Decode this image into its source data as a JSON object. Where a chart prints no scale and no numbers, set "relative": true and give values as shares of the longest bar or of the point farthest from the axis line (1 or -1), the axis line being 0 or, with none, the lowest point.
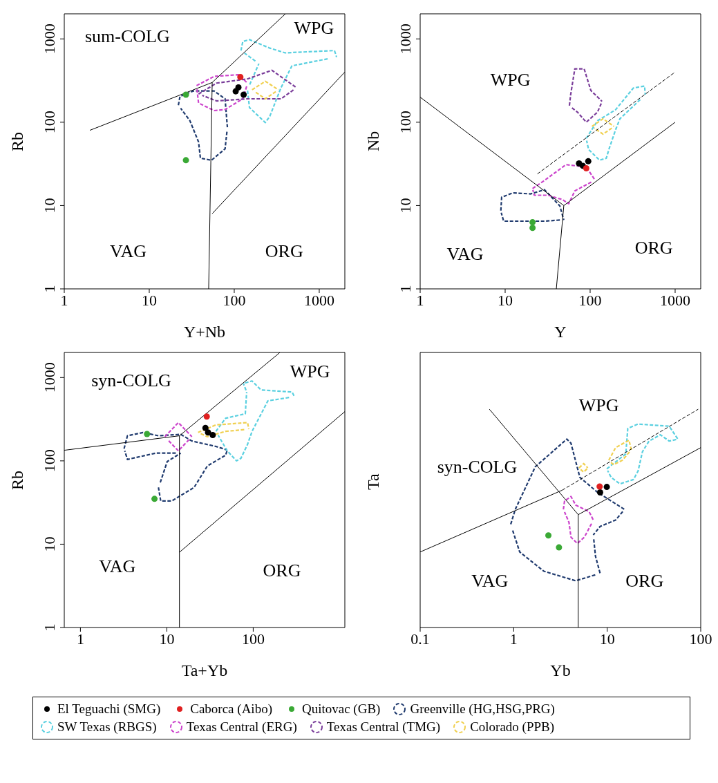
{
  "chart_data": [
    {
      "type": "scatter",
      "xlabel": "Y+Nb",
      "ylabel": "Rb",
      "log": "xy",
      "legend": "bottom",
      "xlim": [
        1,
        2000
      ],
      "ylim": [
        1,
        2000
      ],
      "xticks": [
        1,
        10,
        100,
        1000
      ],
      "yticks": [
        1,
        10,
        100,
        1000
      ],
      "annotations": [
        "sum-COLG",
        "WPG",
        "VAG",
        "ORG"
      ],
      "series": [
        {
          "name": "El Teguachi (SMG)",
          "type": "scatter",
          "marker": "circle",
          "color": "#000000",
          "x": [
            112,
            104,
            129
          ],
          "values": [
            262,
            235,
            214
          ]
        },
        {
          "name": "Caborca (Aibo)",
          "type": "scatter",
          "marker": "circle",
          "color": "#e02020",
          "x": [
            118
          ],
          "values": [
            348
          ]
        },
        {
          "name": "Quitovac (GB)",
          "type": "scatter",
          "marker": "circle",
          "color": "#3aa935",
          "x": [
            27,
            27
          ],
          "values": [
            214,
            35
          ]
        },
        {
          "name": "Greenville (HG,HSG,PRG)",
          "type": "line",
          "line_style": "dashed",
          "color": "#1f3a6e",
          "x": [
            22,
            23,
            33,
            58,
            78,
            83
          ],
          "values": [
            160,
            204,
            237,
            237,
            191,
            87
          ]
        },
        {
          "type": "line",
          "line_style": "dashed",
          "color": "#1f3a6e",
          "x": [
            82,
            78,
            54,
            40,
            38,
            30,
            23.4
          ],
          "values": [
            77,
            48,
            35,
            37,
            58,
            105,
            147
          ]
        },
        {
          "name": "SW Texas (RBGS)",
          "type": "line",
          "line_style": "dashed",
          "color": "#5ad0e0",
          "x": [
            120,
            126,
            151,
            262,
            398,
            1510,
            1600
          ],
          "values": [
            725,
            930,
            980,
            775,
            680,
            725,
            605
          ]
        },
        {
          "type": "line",
          "line_style": "dashed",
          "color": "#5ad0e0",
          "x": [
            1256,
            477,
            355,
            262,
            232,
            151,
            143
          ],
          "values": [
            577,
            475,
            260,
            118,
            99,
            150,
            245
          ]
        },
        {
          "type": "line",
          "line_style": "dashed",
          "color": "#5ad0e0",
          "x": [
            152,
            195
          ],
          "values": [
            283,
            505
          ]
        },
        {
          "type": "line",
          "line_style": "dashed",
          "color": "#5ad0e0",
          "x": [
            177,
            132
          ],
          "values": [
            543,
            675
          ]
        },
        {
          "name": "Texas Central (ERG)",
          "type": "line",
          "line_style": "dashed",
          "color": "#cc44cc",
          "x": [
            36,
            58,
            112,
            143
          ],
          "values": [
            275,
            355,
            372,
            295
          ]
        },
        {
          "type": "line",
          "line_style": "dashed",
          "color": "#cc44cc",
          "x": [
            140,
            126,
            78,
            58,
            38,
            36.4
          ],
          "values": [
            270,
            191,
            142,
            138,
            170,
            250
          ]
        },
        {
          "name": "Texas Central (TMG)",
          "type": "line",
          "line_style": "dashed",
          "color": "#7a3d9a",
          "x": [
            38,
            62,
            143,
            277,
            540
          ],
          "values": [
            218,
            295,
            331,
            420,
            260
          ]
        },
        {
          "type": "line",
          "line_style": "dashed",
          "color": "#7a3d9a",
          "x": [
            497,
            355,
            143,
            62,
            42
          ],
          "values": [
            244,
            191,
            191,
            180,
            210
          ]
        },
        {
          "name": "Colorado (PPB)",
          "type": "line",
          "line_style": "dashed",
          "color": "#f0d050",
          "x": [
            162,
            232,
            331
          ],
          "values": [
            245,
            310,
            245
          ]
        },
        {
          "type": "line",
          "line_style": "dashed",
          "color": "#f0d050",
          "x": [
            308,
            232,
            174
          ],
          "values": [
            233,
            191,
            233
          ]
        },
        {
          "type": "line",
          "line_style": "solid",
          "color": "#000000",
          "x": [
            2,
            55,
            400
          ],
          "values": [
            80,
            300,
            2000
          ]
        },
        {
          "type": "line",
          "line_style": "solid",
          "color": "#000000",
          "x": [
            55,
            50
          ],
          "values": [
            300,
            1
          ]
        },
        {
          "type": "line",
          "line_style": "solid",
          "color": "#000000",
          "x": [
            55,
            2000
          ],
          "values": [
            8,
            400
          ]
        }
      ]
    },
    {
      "type": "scatter",
      "xlabel": "Y",
      "ylabel": "Nb",
      "log": "xy",
      "xlim": [
        1,
        2000
      ],
      "ylim": [
        1,
        2000
      ],
      "xticks": [
        1,
        10,
        100,
        1000
      ],
      "yticks": [
        1,
        10,
        100,
        1000
      ],
      "annotations": [
        "WPG",
        "VAG",
        "ORG"
      ],
      "series": [
        {
          "type": "scatter",
          "marker": "circle",
          "color": "#000000",
          "x": [
            74,
            95,
            82
          ],
          "values": [
            32,
            34,
            30
          ]
        },
        {
          "type": "scatter",
          "marker": "circle",
          "color": "#e02020",
          "x": [
            90
          ],
          "values": [
            28
          ]
        },
        {
          "type": "scatter",
          "marker": "circle",
          "color": "#3aa935",
          "x": [
            21,
            21
          ],
          "values": [
            6.3,
            5.4
          ]
        },
        {
          "type": "line",
          "line_style": "dashed",
          "color": "#1f3a6e",
          "x": [
            8.9,
            9.1,
            12.3,
            20,
            29,
            44,
            49
          ],
          "values": [
            8.7,
            12.6,
            14.2,
            13.8,
            15.5,
            9.9,
            6.7
          ]
        },
        {
          "type": "line",
          "line_style": "dashed",
          "color": "#1f3a6e",
          "x": [
            44,
            29,
            9.6,
            9
          ],
          "values": [
            6.7,
            6.5,
            6.5,
            8.2
          ]
        },
        {
          "type": "line",
          "line_style": "dashed",
          "color": "#5ad0e0",
          "x": [
            90,
            122,
            199,
            322,
            437,
            445
          ],
          "values": [
            64,
            104,
            141,
            257,
            272,
            214
          ]
        },
        {
          "type": "line",
          "line_style": "dashed",
          "color": "#5ad0e0",
          "x": [
            388,
            224,
            199,
            166,
            155,
            129,
            96,
            91
          ],
          "values": [
            187,
            110,
            81,
            47,
            37,
            35,
            47,
            60
          ]
        },
        {
          "type": "line",
          "line_style": "dashed",
          "color": "#cc44cc",
          "x": [
            21,
            29,
            52,
            90,
            115
          ],
          "values": [
            16,
            20,
            31,
            29,
            20
          ]
        },
        {
          "type": "line",
          "line_style": "dashed",
          "color": "#cc44cc",
          "x": [
            103,
            66,
            56,
            47,
            32,
            22,
            21.2
          ],
          "values": [
            19.1,
            15,
            10.5,
            11.8,
            13.3,
            13.3,
            15.4
          ]
        },
        {
          "type": "line",
          "line_style": "dashed",
          "color": "#7a3d9a",
          "x": [
            57,
            59,
            66,
            85,
            102,
            138
          ],
          "values": [
            158,
            214,
            437,
            437,
            240,
            178
          ]
        },
        {
          "type": "line",
          "line_style": "dashed",
          "color": "#7a3d9a",
          "x": [
            135,
            122,
            90,
            71,
            59.6
          ],
          "values": [
            168,
            132,
            100,
            132,
            152
          ]
        },
        {
          "type": "line",
          "line_style": "dashed",
          "color": "#f0d050",
          "x": [
            105,
            142,
            191
          ],
          "values": [
            89,
            110,
            89
          ]
        },
        {
          "type": "line",
          "line_style": "dashed",
          "color": "#f0d050",
          "x": [
            180,
            142,
            111.5
          ],
          "values": [
            85,
            72,
            85
          ]
        },
        {
          "type": "line",
          "line_style": "solid",
          "color": "#000000",
          "x": [
            1,
            49
          ],
          "values": [
            200,
            10
          ]
        },
        {
          "type": "line",
          "line_style": "solid",
          "color": "#000000",
          "x": [
            49,
            40
          ],
          "values": [
            10,
            1
          ]
        },
        {
          "type": "line",
          "line_style": "solid",
          "color": "#000000",
          "x": [
            49,
            1000
          ],
          "values": [
            10,
            100
          ]
        },
        {
          "type": "line",
          "line_style": "dashed",
          "color": "#000000",
          "x": [
            24,
            1000
          ],
          "values": [
            24,
            400
          ]
        }
      ]
    },
    {
      "type": "scatter",
      "xlabel": "Ta+Yb",
      "ylabel": "Rb",
      "log": "xy",
      "xlim": [
        0.65,
        1150
      ],
      "ylim": [
        1,
        2000
      ],
      "xticks": [
        1,
        10,
        100
      ],
      "yticks": [
        1,
        10,
        100,
        1000
      ],
      "annotations": [
        "syn-COLG",
        "WPG",
        "VAG",
        "ORG"
      ],
      "series": [
        {
          "type": "scatter",
          "marker": "circle",
          "color": "#000000",
          "x": [
            28,
            30,
            34
          ],
          "values": [
            248,
            219,
            204
          ]
        },
        {
          "type": "scatter",
          "marker": "circle",
          "color": "#e02020",
          "x": [
            29
          ],
          "values": [
            340
          ]
        },
        {
          "type": "scatter",
          "marker": "circle",
          "color": "#3aa935",
          "x": [
            5.9,
            7.2
          ],
          "values": [
            210,
            35
          ]
        },
        {
          "type": "line",
          "line_style": "dashed",
          "color": "#1f3a6e",
          "x": [
            3.2,
            3.5,
            5.3,
            8,
            14.5,
            19.5,
            37,
            50
          ],
          "values": [
            140,
            200,
            219,
            200,
            208,
            173,
            149,
            135
          ]
        },
        {
          "type": "line",
          "line_style": "dashed",
          "color": "#1f3a6e",
          "x": [
            49.6,
            48,
            29.5,
            20.7,
            11.4,
            8.5,
            8
          ],
          "values": [
            131,
            117,
            87,
            48,
            33,
            33,
            48
          ]
        },
        {
          "type": "line",
          "line_style": "dashed",
          "color": "#1f3a6e",
          "x": [
            8.4,
            10.1,
            14.5
          ],
          "values": [
            55,
            98,
            124
          ]
        },
        {
          "type": "line",
          "line_style": "dashed",
          "color": "#1f3a6e",
          "x": [
            12.7,
            7.5,
            3.5,
            3.26
          ],
          "values": [
            124,
            124,
            104,
            132
          ]
        },
        {
          "type": "line",
          "line_style": "dashed",
          "color": "#5ad0e0",
          "x": [
            37,
            48,
            81,
            84
          ],
          "values": [
            226,
            325,
            367,
            670
          ]
        },
        {
          "type": "line",
          "line_style": "dashed",
          "color": "#5ad0e0",
          "x": [
            82.6,
            77
          ],
          "values": [
            703,
            850
          ]
        },
        {
          "type": "line",
          "line_style": "dashed",
          "color": "#5ad0e0",
          "x": [
            80.6,
            97,
            123,
            282,
            300
          ],
          "values": [
            861,
            910,
            710,
            670,
            590
          ]
        },
        {
          "type": "line",
          "line_style": "dashed",
          "color": "#5ad0e0",
          "x": [
            260,
            148,
            97,
            86,
            72,
            64,
            50,
            39.3
          ],
          "values": [
            576,
            525,
            226,
            158,
            107,
            100,
            132,
            203
          ]
        },
        {
          "type": "line",
          "line_style": "dashed",
          "color": "#cc44cc",
          "x": [
            9.5,
            13.6,
            19.5
          ],
          "values": [
            195,
            288,
            195
          ]
        },
        {
          "type": "line",
          "line_style": "dashed",
          "color": "#cc44cc",
          "x": [
            18.1,
            13.6,
            10.2
          ],
          "values": [
            180,
            132,
            180
          ]
        },
        {
          "type": "line",
          "line_style": "dashed",
          "color": "#f0d050",
          "x": [
            23,
            37,
            86,
            89
          ],
          "values": [
            219,
            270,
            288,
            240
          ]
        },
        {
          "type": "line",
          "line_style": "dashed",
          "color": "#f0d050",
          "x": [
            78.7,
            48,
            29.5,
            24.2
          ],
          "values": [
            237,
            226,
            195,
            214
          ]
        },
        {
          "type": "line",
          "line_style": "solid",
          "color": "#000000",
          "x": [
            0.65,
            14,
            204
          ],
          "values": [
            134,
            200,
            2000
          ]
        },
        {
          "type": "line",
          "line_style": "solid",
          "color": "#000000",
          "x": [
            14,
            14
          ],
          "values": [
            200,
            1
          ]
        },
        {
          "type": "line",
          "line_style": "solid",
          "color": "#000000",
          "x": [
            14,
            1150
          ],
          "values": [
            8,
            390
          ]
        }
      ]
    },
    {
      "type": "scatter",
      "xlabel": "Yb",
      "ylabel": "Ta",
      "log": "x",
      "relative": true,
      "tick_labels": "x",
      "xlim": [
        0.1,
        100
      ],
      "xticks": [
        0.1,
        1,
        10,
        100
      ],
      "annotations": [
        "WPG",
        "syn-COLG",
        "VAG",
        "ORG"
      ],
      "series": [
        {
          "type": "scatter",
          "marker": "circle",
          "color": "#000000",
          "x": [
            9.9,
            8.4
          ],
          "values": [
            0.644,
            0.619
          ]
        },
        {
          "type": "scatter",
          "marker": "circle",
          "color": "#e02020",
          "x": [
            8.3
          ],
          "values": [
            0.646
          ]
        },
        {
          "type": "scatter",
          "marker": "circle",
          "color": "#3aa935",
          "x": [
            2.35,
            3.05
          ],
          "values": [
            0.422,
            0.367
          ]
        },
        {
          "type": "line",
          "line_style": "dashed",
          "color": "#1f3a6e",
          "x": [
            0.93,
            1.04,
            1.7,
            3.7,
            4.1,
            5.1,
            7.9,
            15.3
          ],
          "values": [
            0.473,
            0.541,
            0.736,
            0.863,
            0.844,
            0.688,
            0.619,
            0.541
          ]
        },
        {
          "type": "line",
          "line_style": "dashed",
          "color": "#1f3a6e",
          "x": [
            14.65,
            12.3,
            8.4,
            7.1
          ],
          "values": [
            0.531,
            0.492,
            0.463,
            0.424
          ]
        },
        {
          "type": "line",
          "line_style": "dashed",
          "color": "#1f3a6e",
          "x": [
            7.18,
            7.5,
            8.4
          ],
          "values": [
            0.404,
            0.326,
            0.248
          ]
        },
        {
          "type": "line",
          "line_style": "dashed",
          "color": "#1f3a6e",
          "x": [
            7.45,
            4.6,
            2.1,
            1.16,
            0.97
          ],
          "values": [
            0.241,
            0.214,
            0.258,
            0.346,
            0.448
          ]
        },
        {
          "type": "line",
          "line_style": "dashed",
          "color": "#5ad0e0",
          "x": [
            9.9,
            15.8,
            16.6,
            21.4,
            46,
            57
          ],
          "values": [
            0.727,
            0.795,
            0.912,
            0.932,
            0.922,
            0.863
          ]
        },
        {
          "type": "line",
          "line_style": "dashed",
          "color": "#5ad0e0",
          "x": [
            54.6,
            46,
            37,
            28,
            23.8,
            21.4,
            19.1,
            13.7,
            11,
            10.1
          ],
          "values": [
            0.861,
            0.854,
            0.883,
            0.854,
            0.805,
            0.717,
            0.678,
            0.658,
            0.688,
            0.719
          ]
        },
        {
          "type": "line",
          "line_style": "dashed",
          "color": "#cc44cc",
          "x": [
            3.4,
            3.5,
            4.1,
            4.6,
            6.4,
            7.1
          ],
          "values": [
            0.541,
            0.58,
            0.6,
            0.561,
            0.531,
            0.492
          ]
        },
        {
          "type": "line",
          "line_style": "dashed",
          "color": "#cc44cc",
          "x": [
            6.8,
            5.7,
            4.8,
            4.1,
            3.9,
            3.5
          ],
          "values": [
            0.476,
            0.414,
            0.385,
            0.414,
            0.482,
            0.529
          ]
        },
        {
          "type": "line",
          "line_style": "dashed",
          "color": "#f0d050",
          "x": [
            10.4,
            12.3,
            17.1,
            18.1
          ],
          "values": [
            0.766,
            0.824,
            0.858,
            0.814
          ]
        },
        {
          "type": "line",
          "line_style": "dashed",
          "color": "#f0d050",
          "x": [
            17.3,
            14.5,
            11.7,
            10.6
          ],
          "values": [
            0.804,
            0.766,
            0.746,
            0.762
          ]
        },
        {
          "type": "line",
          "line_style": "dashed",
          "color": "#f0d050",
          "x": [
            5,
            5.6,
            6.2
          ],
          "values": [
            0.731,
            0.751,
            0.731
          ]
        },
        {
          "type": "line",
          "line_style": "dashed",
          "color": "#f0d050",
          "x": [
            6.08,
            5.6,
            5.1
          ],
          "values": [
            0.727,
            0.712,
            0.727
          ]
        },
        {
          "type": "line",
          "line_style": "solid",
          "color": "#000000",
          "x": [
            0.1,
            3.3
          ],
          "values": [
            0.346,
            0.629
          ]
        },
        {
          "type": "line",
          "line_style": "dashed",
          "color": "#000000",
          "x": [
            3.3,
            94
          ],
          "values": [
            0.629,
            1
          ]
        },
        {
          "type": "line",
          "line_style": "solid",
          "color": "#000000",
          "x": [
            4.9,
            100
          ],
          "values": [
            0.517,
            0.824
          ]
        },
        {
          "type": "line",
          "line_style": "solid",
          "color": "#000000",
          "x": [
            0.55,
            4.9
          ],
          "values": [
            1,
            0.517
          ]
        },
        {
          "type": "line",
          "line_style": "solid",
          "color": "#000000",
          "x": [
            4.9,
            4.9
          ],
          "values": [
            0.517,
            0
          ]
        }
      ]
    }
  ]
}
